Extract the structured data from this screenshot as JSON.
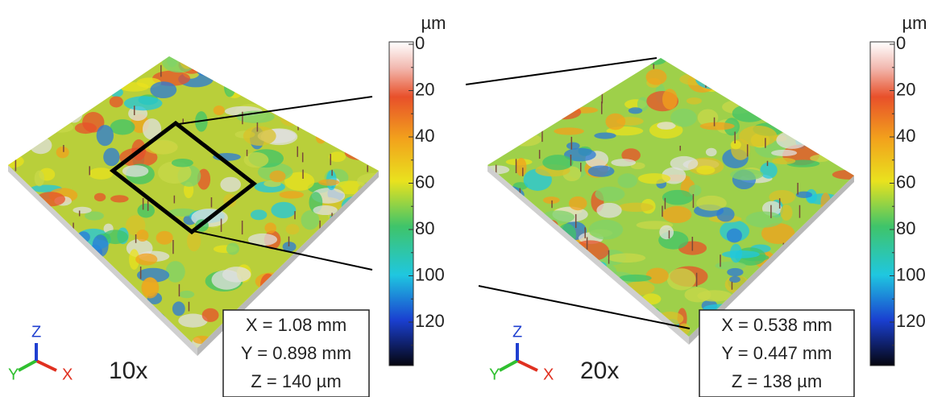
{
  "panels": [
    {
      "unit": "µm",
      "colorbar_ticks": [
        0,
        20,
        40,
        60,
        80,
        100,
        120
      ],
      "dimensions": [
        "X = 1.08 mm",
        "Y = 0.898 mm",
        "Z = 140 µm"
      ],
      "magnification": "10x",
      "axes": [
        "X",
        "Y",
        "Z"
      ]
    },
    {
      "unit": "µm",
      "colorbar_ticks": [
        0,
        20,
        40,
        60,
        80,
        100,
        120
      ],
      "dimensions": [
        "X = 0.538 mm",
        "Y = 0.447 mm",
        "Z = 138 µm"
      ],
      "magnification": "20x",
      "axes": [
        "X",
        "Y",
        "Z"
      ]
    }
  ]
}
